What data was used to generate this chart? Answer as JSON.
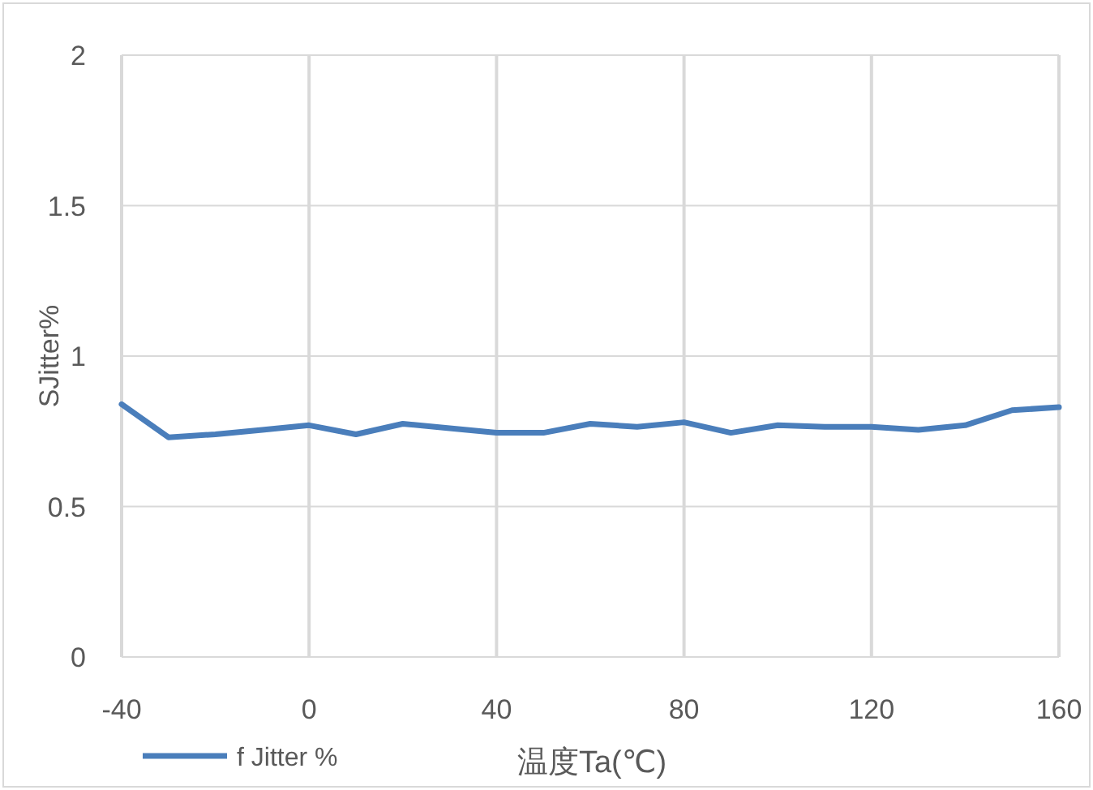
{
  "chart_data": {
    "type": "line",
    "xlabel": "温度Ta(℃)",
    "ylabel": "SJitter%",
    "x": [
      -40,
      -30,
      -20,
      -10,
      0,
      10,
      20,
      30,
      40,
      50,
      60,
      70,
      80,
      90,
      100,
      110,
      120,
      130,
      140,
      150,
      160
    ],
    "series": [
      {
        "name": "f Jitter %",
        "color": "#4a7ebb",
        "values": [
          0.84,
          0.73,
          0.74,
          0.755,
          0.77,
          0.74,
          0.775,
          0.76,
          0.745,
          0.745,
          0.775,
          0.765,
          0.78,
          0.745,
          0.77,
          0.765,
          0.765,
          0.755,
          0.77,
          0.82,
          0.83
        ]
      }
    ],
    "xlim": [
      -40,
      160
    ],
    "xticks": [
      -40,
      0,
      40,
      80,
      120,
      160
    ],
    "ylim": [
      0,
      2
    ],
    "yticks": [
      0,
      0.5,
      1,
      1.5,
      2
    ],
    "grid": true,
    "legend": "bottom",
    "marker": "none",
    "line_style": "solid"
  }
}
